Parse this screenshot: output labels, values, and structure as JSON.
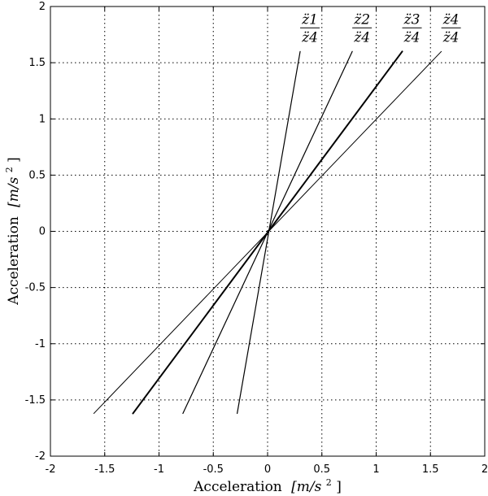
{
  "chart_data": {
    "type": "line",
    "xlabel_text": "Acceleration",
    "xlabel_unit": "[m/s",
    "xlabel_unit_sup": "2",
    "xlabel_unit_close": "]",
    "ylabel_text": "Acceleration",
    "ylabel_unit": "[m/s",
    "ylabel_unit_sup": "2",
    "ylabel_unit_close": "]",
    "xlim": [
      -2,
      2
    ],
    "ylim": [
      -2,
      2
    ],
    "grid": true,
    "x_ticks": [
      -2,
      -1.5,
      -1,
      -0.5,
      0,
      0.5,
      1,
      1.5,
      2
    ],
    "y_ticks": [
      -2,
      -1.5,
      -1,
      -0.5,
      0,
      0.5,
      1,
      1.5,
      2
    ],
    "x_tick_labels": [
      "-2",
      "-1.5",
      "-1",
      "-0.5",
      "0",
      "0.5",
      "1",
      "1.5",
      "2"
    ],
    "y_tick_labels": [
      "-2",
      "-1.5",
      "-1",
      "-0.5",
      "0",
      "0.5",
      "1",
      "1.5",
      "2"
    ],
    "series": [
      {
        "label_num": "z̈1",
        "label_den": "z̈4",
        "x": [
          -0.28,
          0.3
        ],
        "y": [
          -1.62,
          1.6
        ],
        "stroke": "#000000",
        "width": 1.2
      },
      {
        "label_num": "z̈2",
        "label_den": "z̈4",
        "x": [
          -0.78,
          0.78
        ],
        "y": [
          -1.62,
          1.6
        ],
        "stroke": "#000000",
        "width": 1.2
      },
      {
        "label_num": "z̈3",
        "label_den": "z̈4",
        "x": [
          -1.24,
          1.24
        ],
        "y": [
          -1.62,
          1.6
        ],
        "stroke": "#000000",
        "width": 2.0
      },
      {
        "label_num": "z̈4",
        "label_den": "z̈4",
        "x": [
          -1.6,
          1.6
        ],
        "y": [
          -1.62,
          1.6
        ],
        "stroke": "#000000",
        "width": 1.0
      }
    ]
  }
}
